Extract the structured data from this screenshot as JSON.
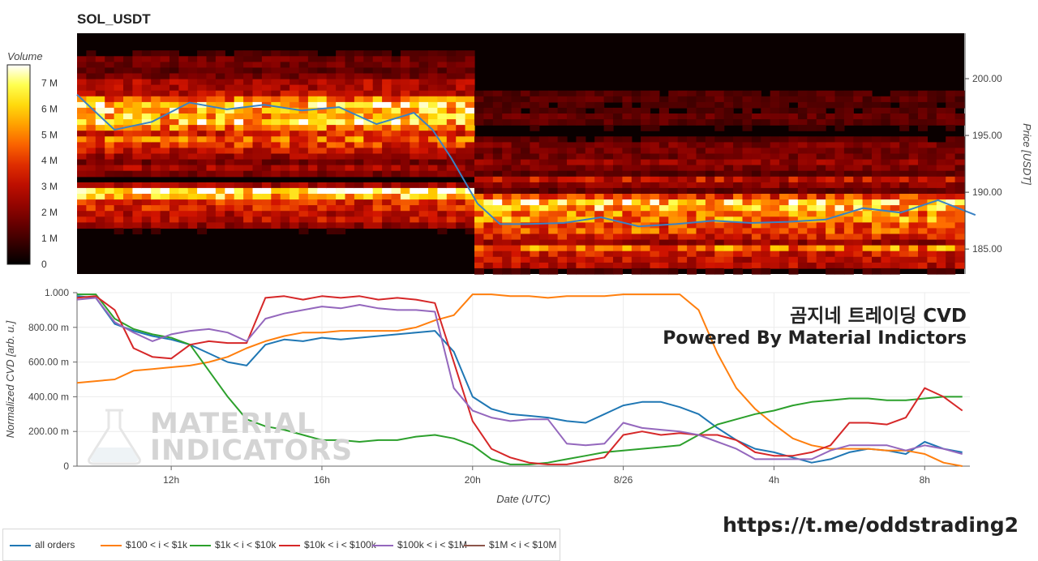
{
  "title": "SOL_USDT",
  "overlay": {
    "line1": "곰지네 트레이딩 CVD",
    "line2": "Powered By Material Indictors",
    "link": "https://t.me/oddstrading2"
  },
  "watermark": {
    "line1": "MATERIAL",
    "line2": "INDICATORS"
  },
  "colors": {
    "all_orders": "#1f77b4",
    "r100_1k": "#ff7f0e",
    "r1k_10k": "#2ca02c",
    "r10k_100k": "#d62728",
    "r100k_1m": "#9467bd",
    "r1m_10m": "#8c564b",
    "price_line": "#3a82c4"
  },
  "chart_data": [
    {
      "type": "heatmap",
      "title": "SOL_USDT",
      "ylabel": "Price [USDT]",
      "ylim": [
        182.8,
        204.0
      ],
      "yticks": [
        "200.00",
        "195.00",
        "190.00",
        "185.00"
      ],
      "colorbar": {
        "label": "Volume",
        "ticks": [
          "0",
          "1 M",
          "2 M",
          "3 M",
          "4 M",
          "5 M",
          "6 M",
          "7 M"
        ],
        "range": [
          0,
          7700000
        ]
      },
      "price_series": {
        "name": "Price",
        "x": [
          9.5,
          10.5,
          11.5,
          12.5,
          13.5,
          14.5,
          15.5,
          16.5,
          17.5,
          18.5,
          19.0,
          19.5,
          20.2,
          20.8,
          21.5,
          22.5,
          23.5,
          24.5,
          25.5,
          26.5,
          27.5,
          28.5,
          29.5,
          30.5,
          31.5,
          32.5,
          33.5
        ],
        "values": [
          198.6,
          195.5,
          196.2,
          197.9,
          197.3,
          197.7,
          197.2,
          197.5,
          196.0,
          197.0,
          195.5,
          193.0,
          189.0,
          187.2,
          187.2,
          187.3,
          187.8,
          187.0,
          187.2,
          187.5,
          187.3,
          187.4,
          187.6,
          188.6,
          188.2,
          189.3,
          188.0
        ]
      }
    },
    {
      "type": "line",
      "xlabel": "Date (UTC)",
      "ylabel": "Normalized CVD [arb. u.]",
      "x_unit": "hours since 8/25 00:00 UTC",
      "xlim": [
        9.5,
        33.2
      ],
      "xticks": [
        {
          "at": 12,
          "label": "12h"
        },
        {
          "at": 16,
          "label": "16h"
        },
        {
          "at": 20,
          "label": "20h"
        },
        {
          "at": 24,
          "label": "8/26"
        },
        {
          "at": 28,
          "label": "4h"
        },
        {
          "at": 32,
          "label": "8h"
        }
      ],
      "ylim": [
        0,
        1.0
      ],
      "yticks": [
        {
          "at": 0,
          "label": "0"
        },
        {
          "at": 0.2,
          "label": "200.00 m"
        },
        {
          "at": 0.4,
          "label": "400.00 m"
        },
        {
          "at": 0.6,
          "label": "600.00 m"
        },
        {
          "at": 0.8,
          "label": "800.00 m"
        },
        {
          "at": 1.0,
          "label": "1.000"
        }
      ],
      "legend": "bottom-left",
      "series": [
        {
          "name": "all orders",
          "color": "#1f77b4",
          "x": [
            9.5,
            10.0,
            10.5,
            11.0,
            11.5,
            12.0,
            12.5,
            13.0,
            13.5,
            14.0,
            14.5,
            15.0,
            15.5,
            16.0,
            16.5,
            17.0,
            17.5,
            18.0,
            18.5,
            19.0,
            19.5,
            20.0,
            20.5,
            21.0,
            21.5,
            22.0,
            22.5,
            23.0,
            23.5,
            24.0,
            24.5,
            25.0,
            25.5,
            26.0,
            26.5,
            27.0,
            27.5,
            28.0,
            28.5,
            29.0,
            29.5,
            30.0,
            30.5,
            31.0,
            31.5,
            32.0,
            32.5,
            33.0
          ],
          "values": [
            0.98,
            0.97,
            0.82,
            0.78,
            0.75,
            0.73,
            0.7,
            0.65,
            0.6,
            0.58,
            0.7,
            0.73,
            0.72,
            0.74,
            0.73,
            0.74,
            0.75,
            0.76,
            0.77,
            0.78,
            0.66,
            0.4,
            0.33,
            0.3,
            0.29,
            0.28,
            0.26,
            0.25,
            0.3,
            0.35,
            0.37,
            0.37,
            0.34,
            0.3,
            0.22,
            0.15,
            0.1,
            0.08,
            0.05,
            0.02,
            0.04,
            0.08,
            0.1,
            0.09,
            0.07,
            0.14,
            0.1,
            0.08
          ]
        },
        {
          "name": "$100 < i < $1k",
          "color": "#ff7f0e",
          "x": [
            9.5,
            10.0,
            10.5,
            11.0,
            11.5,
            12.0,
            12.5,
            13.0,
            13.5,
            14.0,
            14.5,
            15.0,
            15.5,
            16.0,
            16.5,
            17.0,
            17.5,
            18.0,
            18.5,
            19.0,
            19.5,
            20.0,
            20.5,
            21.0,
            21.5,
            22.0,
            22.5,
            23.0,
            23.5,
            24.0,
            24.5,
            25.0,
            25.5,
            26.0,
            26.5,
            27.0,
            27.5,
            28.0,
            28.5,
            29.0,
            29.5,
            30.0,
            30.5,
            31.0,
            31.5,
            32.0,
            32.5,
            33.0
          ],
          "values": [
            0.48,
            0.49,
            0.5,
            0.55,
            0.56,
            0.57,
            0.58,
            0.6,
            0.63,
            0.68,
            0.72,
            0.75,
            0.77,
            0.77,
            0.78,
            0.78,
            0.78,
            0.78,
            0.8,
            0.84,
            0.87,
            0.99,
            0.99,
            0.98,
            0.98,
            0.97,
            0.98,
            0.98,
            0.98,
            0.99,
            0.99,
            0.99,
            0.99,
            0.9,
            0.65,
            0.45,
            0.33,
            0.24,
            0.16,
            0.12,
            0.1,
            0.1,
            0.1,
            0.09,
            0.09,
            0.07,
            0.02,
            0.0
          ]
        },
        {
          "name": "$1k < i < $10k",
          "color": "#2ca02c",
          "x": [
            9.5,
            10.0,
            10.5,
            11.0,
            11.5,
            12.0,
            12.5,
            13.0,
            13.5,
            14.0,
            14.5,
            15.0,
            15.5,
            16.0,
            16.5,
            17.0,
            17.5,
            18.0,
            18.5,
            19.0,
            19.5,
            20.0,
            20.5,
            21.0,
            21.5,
            22.0,
            22.5,
            23.0,
            23.5,
            24.0,
            24.5,
            25.0,
            25.5,
            26.0,
            26.5,
            27.0,
            27.5,
            28.0,
            28.5,
            29.0,
            29.5,
            30.0,
            30.5,
            31.0,
            31.5,
            32.0,
            32.5,
            33.0
          ],
          "values": [
            0.99,
            0.99,
            0.85,
            0.79,
            0.76,
            0.74,
            0.7,
            0.55,
            0.4,
            0.27,
            0.23,
            0.21,
            0.18,
            0.15,
            0.15,
            0.14,
            0.15,
            0.15,
            0.17,
            0.18,
            0.16,
            0.12,
            0.04,
            0.01,
            0.01,
            0.02,
            0.04,
            0.06,
            0.08,
            0.09,
            0.1,
            0.11,
            0.12,
            0.18,
            0.24,
            0.27,
            0.3,
            0.32,
            0.35,
            0.37,
            0.38,
            0.39,
            0.39,
            0.38,
            0.38,
            0.39,
            0.4,
            0.4
          ]
        },
        {
          "name": "$10k < i < $100k",
          "color": "#d62728",
          "x": [
            9.5,
            10.0,
            10.5,
            11.0,
            11.5,
            12.0,
            12.5,
            13.0,
            13.5,
            14.0,
            14.5,
            15.0,
            15.5,
            16.0,
            16.5,
            17.0,
            17.5,
            18.0,
            18.5,
            19.0,
            19.5,
            20.0,
            20.5,
            21.0,
            21.5,
            22.0,
            22.5,
            23.0,
            23.5,
            24.0,
            24.5,
            25.0,
            25.5,
            26.0,
            26.5,
            27.0,
            27.5,
            28.0,
            28.5,
            29.0,
            29.5,
            30.0,
            30.5,
            31.0,
            31.5,
            32.0,
            32.5,
            33.0
          ],
          "values": [
            0.97,
            0.98,
            0.9,
            0.68,
            0.63,
            0.62,
            0.7,
            0.72,
            0.71,
            0.71,
            0.97,
            0.98,
            0.96,
            0.98,
            0.97,
            0.98,
            0.96,
            0.97,
            0.96,
            0.94,
            0.6,
            0.26,
            0.1,
            0.05,
            0.02,
            0.01,
            0.01,
            0.03,
            0.05,
            0.18,
            0.2,
            0.18,
            0.19,
            0.18,
            0.18,
            0.15,
            0.08,
            0.06,
            0.06,
            0.08,
            0.12,
            0.25,
            0.25,
            0.24,
            0.28,
            0.45,
            0.4,
            0.32
          ]
        },
        {
          "name": "$100k < i < $1M",
          "color": "#9467bd",
          "x": [
            9.5,
            10.0,
            10.5,
            11.0,
            11.5,
            12.0,
            12.5,
            13.0,
            13.5,
            14.0,
            14.5,
            15.0,
            15.5,
            16.0,
            16.5,
            17.0,
            17.5,
            18.0,
            18.5,
            19.0,
            19.5,
            20.0,
            20.5,
            21.0,
            21.5,
            22.0,
            22.5,
            23.0,
            23.5,
            24.0,
            24.5,
            25.0,
            25.5,
            26.0,
            26.5,
            27.0,
            27.5,
            28.0,
            28.5,
            29.0,
            29.5,
            30.0,
            30.5,
            31.0,
            31.5,
            32.0,
            32.5,
            33.0
          ],
          "values": [
            0.96,
            0.97,
            0.83,
            0.77,
            0.72,
            0.76,
            0.78,
            0.79,
            0.77,
            0.72,
            0.85,
            0.88,
            0.9,
            0.92,
            0.91,
            0.93,
            0.91,
            0.9,
            0.9,
            0.89,
            0.45,
            0.32,
            0.28,
            0.26,
            0.27,
            0.27,
            0.13,
            0.12,
            0.13,
            0.25,
            0.22,
            0.21,
            0.2,
            0.18,
            0.14,
            0.1,
            0.04,
            0.04,
            0.04,
            0.04,
            0.09,
            0.12,
            0.12,
            0.12,
            0.09,
            0.12,
            0.1,
            0.07
          ]
        },
        {
          "name": "$1M < i < $10M",
          "color": "#8c564b",
          "x": [],
          "values": []
        }
      ]
    }
  ]
}
